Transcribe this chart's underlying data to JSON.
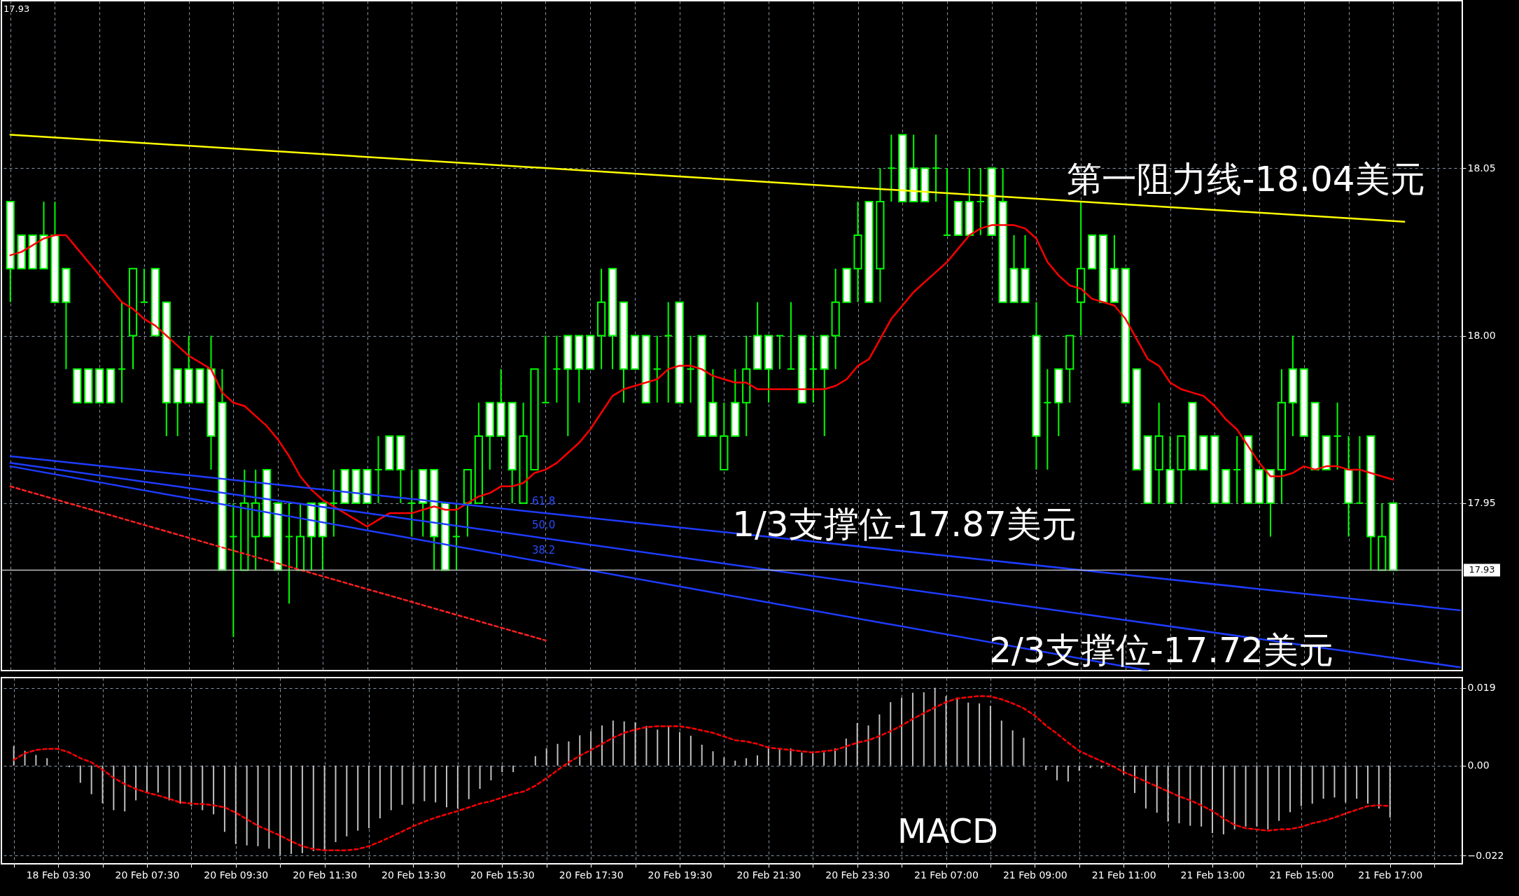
{
  "chart_data": [
    {
      "type": "candlestick",
      "categories": [
        null,
        null,
        null,
        null,
        null,
        null,
        null,
        null,
        null,
        null,
        null,
        null,
        null,
        null,
        null,
        null,
        null,
        null,
        null,
        null,
        null,
        null,
        null,
        null,
        null,
        null,
        null,
        null,
        null,
        null,
        null,
        null,
        null,
        null,
        null,
        null,
        null,
        null,
        null,
        null,
        null,
        null,
        null,
        null,
        null,
        null,
        null,
        null,
        null,
        null,
        null,
        null,
        null,
        null,
        null,
        null,
        null,
        null,
        null,
        null,
        null,
        null,
        null,
        null,
        null,
        null,
        null,
        null,
        null,
        null,
        null,
        null,
        null,
        null,
        null,
        null,
        null,
        null,
        null,
        null,
        null,
        null,
        null,
        null,
        null,
        null,
        null,
        null,
        null,
        null,
        null,
        null,
        null,
        null,
        null,
        null,
        null,
        null,
        null,
        null,
        null,
        null,
        null,
        null,
        null,
        null,
        null,
        null,
        null,
        null,
        null,
        null,
        null,
        null,
        null,
        null,
        null,
        null,
        null,
        null,
        null,
        null,
        null,
        null,
        null,
        null,
        null,
        null,
        null,
        null,
        null
      ],
      "ohlc": [
        [
          18.04,
          18.04,
          18.01,
          18.02
        ],
        [
          18.03,
          18.03,
          18.02,
          18.02
        ],
        [
          18.03,
          18.03,
          18.02,
          18.02
        ],
        [
          18.03,
          18.04,
          18.02,
          18.02
        ],
        [
          18.03,
          18.04,
          18.01,
          18.01
        ],
        [
          18.02,
          18.02,
          17.99,
          18.01
        ],
        [
          17.99,
          17.99,
          17.98,
          17.98
        ],
        [
          17.99,
          17.99,
          17.98,
          17.98
        ],
        [
          17.99,
          17.99,
          17.98,
          17.98
        ],
        [
          17.99,
          17.99,
          17.98,
          17.98
        ],
        [
          17.99,
          18.01,
          17.98,
          17.99
        ],
        [
          18.0,
          18.02,
          17.99,
          18.02
        ],
        [
          18.01,
          18.02,
          18.01,
          18.01
        ],
        [
          18.02,
          18.02,
          18.0,
          18.0
        ],
        [
          18.01,
          18.01,
          17.97,
          17.98
        ],
        [
          17.99,
          17.99,
          17.97,
          17.98
        ],
        [
          17.99,
          18.0,
          17.98,
          17.98
        ],
        [
          17.99,
          17.99,
          17.98,
          17.98
        ],
        [
          17.99,
          18.0,
          17.96,
          17.97
        ],
        [
          17.98,
          17.99,
          17.93,
          17.93
        ],
        [
          17.94,
          17.95,
          17.91,
          17.94
        ],
        [
          17.93,
          17.96,
          17.93,
          17.95
        ],
        [
          17.94,
          17.96,
          17.93,
          17.95
        ],
        [
          17.96,
          17.96,
          17.94,
          17.94
        ],
        [
          17.95,
          17.95,
          17.93,
          17.93
        ],
        [
          17.94,
          17.95,
          17.92,
          17.94
        ],
        [
          17.93,
          17.95,
          17.93,
          17.94
        ],
        [
          17.95,
          17.95,
          17.93,
          17.94
        ],
        [
          17.95,
          17.95,
          17.93,
          17.94
        ],
        [
          17.95,
          17.96,
          17.94,
          17.95
        ],
        [
          17.96,
          17.96,
          17.95,
          17.95
        ],
        [
          17.96,
          17.96,
          17.95,
          17.95
        ],
        [
          17.96,
          17.96,
          17.95,
          17.95
        ],
        [
          17.96,
          17.97,
          17.95,
          17.96
        ],
        [
          17.97,
          17.97,
          17.96,
          17.96
        ],
        [
          17.97,
          17.97,
          17.95,
          17.96
        ],
        [
          17.95,
          17.96,
          17.94,
          17.95
        ],
        [
          17.96,
          17.96,
          17.94,
          17.95
        ],
        [
          17.96,
          17.96,
          17.93,
          17.94
        ],
        [
          17.95,
          17.95,
          17.93,
          17.93
        ],
        [
          17.94,
          17.95,
          17.93,
          17.94
        ],
        [
          17.95,
          17.96,
          17.94,
          17.96
        ],
        [
          17.95,
          17.98,
          17.95,
          17.97
        ],
        [
          17.98,
          17.98,
          17.96,
          17.97
        ],
        [
          17.98,
          17.99,
          17.97,
          17.97
        ],
        [
          17.98,
          17.98,
          17.95,
          17.96
        ],
        [
          17.95,
          17.98,
          17.95,
          17.97
        ],
        [
          17.96,
          17.99,
          17.96,
          17.99
        ],
        [
          17.98,
          18.0,
          17.98,
          17.98
        ],
        [
          17.99,
          18.0,
          17.98,
          17.99
        ],
        [
          18.0,
          18.0,
          17.97,
          17.99
        ],
        [
          18.0,
          18.0,
          17.98,
          17.99
        ],
        [
          18.0,
          18.0,
          17.99,
          17.99
        ],
        [
          18.0,
          18.02,
          17.99,
          18.01
        ],
        [
          18.02,
          18.02,
          17.99,
          18.0
        ],
        [
          18.01,
          18.01,
          17.98,
          17.99
        ],
        [
          18.0,
          18.0,
          17.99,
          17.99
        ],
        [
          18.0,
          18.0,
          17.98,
          17.98
        ],
        [
          17.99,
          18.0,
          17.98,
          17.99
        ],
        [
          18.0,
          18.01,
          17.98,
          18.0
        ],
        [
          18.01,
          18.01,
          17.98,
          17.98
        ],
        [
          17.99,
          18.0,
          17.98,
          17.99
        ],
        [
          18.0,
          18.0,
          17.97,
          17.97
        ],
        [
          17.98,
          17.99,
          17.97,
          17.97
        ],
        [
          17.96,
          17.98,
          17.96,
          17.97
        ],
        [
          17.98,
          17.99,
          17.97,
          17.97
        ],
        [
          17.98,
          18.0,
          17.97,
          17.99
        ],
        [
          18.0,
          18.01,
          17.99,
          17.99
        ],
        [
          18.0,
          18.0,
          17.98,
          17.99
        ],
        [
          18.0,
          18.0,
          17.99,
          18.0
        ],
        [
          17.99,
          18.01,
          17.99,
          17.99
        ],
        [
          18.0,
          18.0,
          17.98,
          17.98
        ],
        [
          17.99,
          18.0,
          17.98,
          17.99
        ],
        [
          18.0,
          18.0,
          17.97,
          17.99
        ],
        [
          18.0,
          18.02,
          17.99,
          18.01
        ],
        [
          18.02,
          18.02,
          18.01,
          18.01
        ],
        [
          18.02,
          18.04,
          18.01,
          18.03
        ],
        [
          18.04,
          18.04,
          18.01,
          18.01
        ],
        [
          18.02,
          18.05,
          18.01,
          18.04
        ],
        [
          18.05,
          18.06,
          18.04,
          18.05
        ],
        [
          18.06,
          18.06,
          18.04,
          18.04
        ],
        [
          18.05,
          18.06,
          18.04,
          18.04
        ],
        [
          18.05,
          18.05,
          18.04,
          18.04
        ],
        [
          18.05,
          18.06,
          18.04,
          18.05
        ],
        [
          18.03,
          18.05,
          18.03,
          18.03
        ],
        [
          18.04,
          18.04,
          18.03,
          18.03
        ],
        [
          18.04,
          18.05,
          18.03,
          18.03
        ],
        [
          18.04,
          18.05,
          18.03,
          18.04
        ],
        [
          18.05,
          18.05,
          18.03,
          18.03
        ],
        [
          18.04,
          18.05,
          18.01,
          18.01
        ],
        [
          18.02,
          18.03,
          18.01,
          18.01
        ],
        [
          18.02,
          18.03,
          18.01,
          18.01
        ],
        [
          18.0,
          18.01,
          17.96,
          17.97
        ],
        [
          17.98,
          17.99,
          17.96,
          17.98
        ],
        [
          17.99,
          17.99,
          17.97,
          17.98
        ],
        [
          17.99,
          18.0,
          17.98,
          18.0
        ],
        [
          18.01,
          18.04,
          18.0,
          18.02
        ],
        [
          18.03,
          18.03,
          18.02,
          18.02
        ],
        [
          18.03,
          18.03,
          18.01,
          18.01
        ],
        [
          18.02,
          18.03,
          18.01,
          18.01
        ],
        [
          18.02,
          18.02,
          17.98,
          17.98
        ],
        [
          17.99,
          17.99,
          17.96,
          17.96
        ],
        [
          17.97,
          17.97,
          17.95,
          17.95
        ],
        [
          17.96,
          17.98,
          17.95,
          17.97
        ],
        [
          17.96,
          17.97,
          17.95,
          17.95
        ],
        [
          17.96,
          17.97,
          17.95,
          17.97
        ],
        [
          17.98,
          17.98,
          17.96,
          17.96
        ],
        [
          17.97,
          17.97,
          17.96,
          17.96
        ],
        [
          17.97,
          17.97,
          17.95,
          17.95
        ],
        [
          17.96,
          17.96,
          17.95,
          17.95
        ],
        [
          17.96,
          17.97,
          17.95,
          17.96
        ],
        [
          17.97,
          17.97,
          17.95,
          17.95
        ],
        [
          17.96,
          17.96,
          17.95,
          17.95
        ],
        [
          17.96,
          17.96,
          17.94,
          17.95
        ],
        [
          17.96,
          17.99,
          17.95,
          17.98
        ],
        [
          17.99,
          18.0,
          17.97,
          17.98
        ],
        [
          17.99,
          17.99,
          17.97,
          17.97
        ],
        [
          17.98,
          17.98,
          17.96,
          17.96
        ],
        [
          17.97,
          17.97,
          17.96,
          17.96
        ],
        [
          17.97,
          17.98,
          17.96,
          17.97
        ],
        [
          17.96,
          17.97,
          17.94,
          17.95
        ],
        [
          17.95,
          17.97,
          17.95,
          17.95
        ],
        [
          17.97,
          17.97,
          17.93,
          17.94
        ],
        [
          17.93,
          17.95,
          17.93,
          17.94
        ],
        [
          17.95,
          17.95,
          17.93,
          17.93
        ],
        null,
        null,
        null,
        null,
        null,
        null
      ],
      "color": "#00ff00",
      "series": [
        {
          "type": "line",
          "color": "#ff0000",
          "values": [
            18.024,
            18.025,
            18.027,
            18.029,
            18.03,
            18.03,
            18.026,
            18.022,
            18.018,
            18.014,
            18.01,
            18.008,
            18.005,
            18.003,
            18.0,
            17.997,
            17.994,
            17.992,
            17.99,
            17.983,
            17.98,
            17.979,
            17.976,
            17.973,
            17.969,
            17.964,
            17.958,
            17.954,
            17.951,
            17.949,
            17.947,
            17.945,
            17.943,
            17.945,
            17.947,
            17.947,
            17.947,
            17.948,
            17.949,
            17.948,
            17.948,
            17.95,
            17.952,
            17.953,
            17.955,
            17.955,
            17.956,
            17.959,
            17.96,
            17.962,
            17.965,
            17.968,
            17.972,
            17.977,
            17.982,
            17.984,
            17.985,
            17.986,
            17.987,
            17.99,
            17.991,
            17.991,
            17.99,
            17.988,
            17.987,
            17.986,
            17.986,
            17.984,
            17.984,
            17.984,
            17.984,
            17.984,
            17.984,
            17.984,
            17.985,
            17.987,
            17.991,
            17.993,
            17.999,
            18.005,
            18.009,
            18.013,
            18.016,
            18.019,
            18.022,
            18.026,
            18.03,
            18.032,
            18.033,
            18.033,
            18.033,
            18.032,
            18.029,
            18.022,
            18.018,
            18.015,
            18.014,
            18.011,
            18.01,
            18.009,
            18.005,
            17.999,
            17.993,
            17.991,
            17.986,
            17.984,
            17.983,
            17.982,
            17.979,
            17.975,
            17.972,
            17.967,
            17.962,
            17.958,
            17.958,
            17.959,
            17.961,
            17.96,
            17.961,
            17.961,
            17.96,
            17.96,
            17.959,
            17.958,
            17.957,
            null,
            null,
            null,
            null,
            null,
            null
          ]
        },
        {
          "type": "line",
          "color": "#ffff00",
          "values": [
            18.06,
            null,
            null,
            null,
            null,
            null,
            null,
            null,
            null,
            null,
            null,
            null,
            null,
            null,
            null,
            null,
            null,
            null,
            null,
            null,
            null,
            null,
            null,
            null,
            null,
            null,
            null,
            null,
            null,
            null,
            null,
            null,
            null,
            null,
            null,
            null,
            null,
            null,
            null,
            null,
            null,
            null,
            null,
            null,
            null,
            null,
            null,
            null,
            null,
            null,
            null,
            null,
            null,
            null,
            null,
            null,
            null,
            null,
            null,
            null,
            null,
            null,
            null,
            null,
            null,
            null,
            null,
            null,
            null,
            null,
            null,
            null,
            null,
            null,
            null,
            null,
            null,
            null,
            null,
            null,
            null,
            null,
            null,
            null,
            null,
            null,
            null,
            null,
            null,
            null,
            null,
            null,
            null,
            null,
            null,
            null,
            null,
            null,
            null,
            null,
            null,
            null,
            null,
            null,
            null,
            null,
            null,
            null,
            null,
            null,
            null,
            null,
            null,
            null,
            null,
            null,
            null,
            null,
            null,
            null,
            null,
            null,
            null,
            null,
            null,
            18.034,
            null,
            null,
            null,
            null,
            null
          ]
        },
        {
          "type": "line",
          "color": "#1e3cff",
          "values": [
            17.964,
            null,
            null,
            null,
            null,
            null,
            null,
            null,
            null,
            null,
            null,
            null,
            null,
            null,
            null,
            null,
            null,
            null,
            null,
            null,
            null,
            null,
            null,
            null,
            null,
            null,
            null,
            null,
            null,
            null,
            null,
            null,
            null,
            null,
            null,
            null,
            null,
            null,
            null,
            null,
            null,
            null,
            null,
            null,
            null,
            null,
            null,
            null,
            null,
            null,
            null,
            null,
            null,
            null,
            null,
            null,
            null,
            null,
            null,
            null,
            null,
            null,
            null,
            null,
            null,
            null,
            null,
            null,
            null,
            null,
            null,
            null,
            null,
            null,
            null,
            null,
            null,
            null,
            null,
            null,
            null,
            null,
            null,
            null,
            null,
            null,
            null,
            null,
            null,
            null,
            null,
            null,
            null,
            null,
            null,
            null,
            null,
            null,
            null,
            null,
            null,
            null,
            null,
            null,
            null,
            null,
            null,
            null,
            null,
            null,
            null,
            null,
            null,
            null,
            null,
            null,
            null,
            null,
            null,
            null,
            null,
            null,
            null,
            null,
            null,
            null,
            null,
            null,
            null,
            null,
            17.918
          ]
        },
        {
          "type": "line",
          "color": "#1e3cff",
          "values": [
            17.962,
            null,
            null,
            null,
            null,
            null,
            null,
            null,
            null,
            null,
            null,
            null,
            null,
            null,
            null,
            null,
            null,
            null,
            null,
            null,
            null,
            null,
            null,
            null,
            null,
            null,
            null,
            null,
            null,
            null,
            null,
            null,
            null,
            null,
            null,
            null,
            null,
            null,
            null,
            null,
            null,
            null,
            null,
            null,
            null,
            null,
            null,
            null,
            null,
            null,
            null,
            null,
            null,
            null,
            null,
            null,
            null,
            null,
            null,
            null,
            null,
            null,
            null,
            null,
            null,
            null,
            null,
            null,
            null,
            null,
            null,
            null,
            null,
            null,
            null,
            null,
            null,
            null,
            null,
            null,
            null,
            null,
            null,
            null,
            null,
            null,
            null,
            null,
            null,
            null,
            null,
            null,
            null,
            null,
            null,
            null,
            null,
            null,
            null,
            null,
            null,
            null,
            null,
            null,
            null,
            null,
            null,
            null,
            null,
            null,
            null,
            null,
            null,
            null,
            null,
            null,
            null,
            null,
            null,
            null,
            null,
            null,
            null,
            null,
            null,
            null,
            null,
            null,
            null,
            null,
            17.901
          ]
        },
        {
          "type": "line",
          "color": "#1e3cff",
          "values": [
            17.961,
            null,
            null,
            null,
            null,
            null,
            null,
            null,
            null,
            null,
            null,
            null,
            null,
            null,
            null,
            null,
            null,
            null,
            null,
            null,
            null,
            null,
            null,
            null,
            null,
            null,
            null,
            null,
            null,
            null,
            null,
            null,
            null,
            null,
            null,
            null,
            null,
            null,
            null,
            null,
            null,
            null,
            null,
            null,
            null,
            null,
            null,
            null,
            null,
            null,
            null,
            null,
            null,
            null,
            null,
            null,
            null,
            null,
            null,
            null,
            null,
            null,
            null,
            null,
            null,
            null,
            null,
            null,
            null,
            null,
            null,
            null,
            null,
            null,
            null,
            null,
            null,
            null,
            null,
            null,
            null,
            null,
            null,
            null,
            null,
            null,
            null,
            null,
            null,
            null,
            null,
            null,
            null,
            null,
            null,
            null,
            null,
            null,
            null,
            null,
            null,
            null,
            17.9,
            null,
            null,
            null,
            null,
            null,
            null,
            null,
            null,
            null,
            null,
            null,
            null,
            null,
            null,
            null,
            null,
            null,
            null,
            null,
            null,
            null,
            null,
            null,
            null,
            null,
            null,
            null,
            null
          ]
        },
        {
          "type": "line",
          "color": "#ff2020",
          "line_style": "dashed",
          "values": [
            17.955,
            null,
            null,
            null,
            null,
            null,
            null,
            null,
            null,
            null,
            null,
            null,
            null,
            null,
            null,
            null,
            null,
            null,
            null,
            null,
            null,
            null,
            null,
            null,
            null,
            null,
            null,
            null,
            null,
            null,
            null,
            null,
            null,
            null,
            null,
            null,
            null,
            null,
            null,
            null,
            null,
            null,
            null,
            null,
            null,
            null,
            null,
            null,
            17.909,
            null,
            null,
            null,
            null,
            null,
            null,
            null,
            null,
            null,
            null,
            null,
            null,
            null,
            null,
            null,
            null,
            null,
            null,
            null,
            null,
            null,
            null,
            null,
            null,
            null,
            null,
            null,
            null,
            null,
            null,
            null,
            null,
            null,
            null,
            null,
            null,
            null,
            null,
            null,
            null,
            null,
            null,
            null,
            null,
            null,
            null,
            null,
            null,
            null,
            null,
            null,
            null,
            null,
            null,
            null,
            null,
            null,
            null,
            null,
            null,
            null,
            null,
            null,
            null,
            null,
            null,
            null,
            null,
            null,
            null,
            null,
            null,
            null,
            null,
            null,
            null,
            null,
            null,
            null,
            null,
            null,
            null
          ]
        }
      ],
      "ylim": [
        17.9,
        18.1
      ],
      "yticks": [
        17.95,
        {
          "value": 18,
          "label": "18.00"
        },
        18.05
      ],
      "grid": true,
      "tick_labels": "y",
      "ref_lines": [
        {
          "axis": "y",
          "value": 17.93,
          "label": "17.93",
          "color": "#c0c0c0"
        }
      ],
      "annotations": [
        "17.93",
        "第一阻力线-18.04美元",
        "1/3支撑位-17.87美元",
        "2/3支撑位-17.72美元",
        "61.8",
        "50.0",
        "38.2"
      ]
    },
    {
      "type": "bar",
      "categories": [
        null,
        null,
        null,
        null,
        "18 Feb 03:30",
        null,
        null,
        null,
        null,
        null,
        null,
        null,
        "20 Feb 07:30",
        null,
        null,
        null,
        null,
        null,
        null,
        null,
        "20 Feb 09:30",
        null,
        null,
        null,
        null,
        null,
        null,
        null,
        "20 Feb 11:30",
        null,
        null,
        null,
        null,
        null,
        null,
        null,
        "20 Feb 13:30",
        null,
        null,
        null,
        null,
        null,
        null,
        null,
        "20 Feb 15:30",
        null,
        null,
        null,
        null,
        null,
        null,
        null,
        "20 Feb 17:30",
        null,
        null,
        null,
        null,
        null,
        null,
        null,
        "20 Feb 19:30",
        null,
        null,
        null,
        null,
        null,
        null,
        null,
        "20 Feb 21:30",
        null,
        null,
        null,
        null,
        null,
        null,
        null,
        "20 Feb 23:30",
        null,
        null,
        null,
        null,
        null,
        null,
        null,
        "21 Feb 07:00",
        null,
        null,
        null,
        null,
        null,
        null,
        null,
        "21 Feb 09:00",
        null,
        null,
        null,
        null,
        null,
        null,
        null,
        "21 Feb 11:00",
        null,
        null,
        null,
        null,
        null,
        null,
        null,
        "21 Feb 13:00",
        null,
        null,
        null,
        null,
        null,
        null,
        null,
        "21 Feb 15:00",
        null,
        null,
        null,
        null,
        null,
        null,
        null,
        "21 Feb 17:00",
        null,
        null,
        null,
        null,
        null,
        null
      ],
      "series": [
        {
          "type": "bar",
          "color": "#c0c0c0",
          "values": [
            0.0048,
            0.0036,
            0.0026,
            0.0018,
            0,
            -0.0004,
            -0.0042,
            -0.007,
            -0.0092,
            -0.0109,
            -0.0112,
            -0.0085,
            -0.0067,
            -0.0066,
            -0.0085,
            -0.0093,
            -0.0099,
            -0.0109,
            -0.0119,
            -0.0162,
            -0.0192,
            -0.0195,
            -0.0197,
            -0.0203,
            -0.0219,
            -0.0216,
            -0.0214,
            -0.0209,
            -0.0207,
            -0.0187,
            -0.0173,
            -0.0159,
            -0.0153,
            -0.0129,
            -0.0109,
            -0.0096,
            -0.0093,
            -0.0087,
            -0.009,
            -0.0102,
            -0.0105,
            -0.0082,
            -0.0057,
            -0.0036,
            -0.0016,
            -0.0016,
            0,
            0.0023,
            0.0042,
            0.0053,
            0.0059,
            0.0074,
            0.0084,
            0.0098,
            0.011,
            0.0108,
            0.0106,
            0.0097,
            0.0088,
            0.0096,
            0.0082,
            0.0073,
            0.0051,
            0.0035,
            0.002,
            0.0012,
            0.0018,
            0.0025,
            0.0042,
            0.0042,
            0.0042,
            0.0032,
            0.0032,
            0.0032,
            0.0042,
            0.0066,
            0.0104,
            0.0098,
            0.0125,
            0.0155,
            0.0166,
            0.0178,
            0.0179,
            0.019,
            0.017,
            0.0166,
            0.0154,
            0.0152,
            0.0146,
            0.011,
            0.0086,
            0.0068,
            0,
            -0.0011,
            -0.0036,
            -0.0039,
            -0.0013,
            -0.0006,
            -0.0007,
            -0.0004,
            -0.0022,
            -0.0067,
            -0.0105,
            -0.0115,
            -0.0137,
            -0.0141,
            -0.0147,
            -0.0149,
            -0.0165,
            -0.0168,
            -0.0156,
            -0.0149,
            -0.0149,
            -0.0156,
            -0.0135,
            -0.0114,
            -0.0099,
            -0.0093,
            -0.0081,
            -0.0078,
            -0.009,
            -0.0081,
            -0.0093,
            -0.0105,
            -0.0127,
            null,
            null,
            null,
            null,
            null,
            null
          ]
        },
        {
          "type": "line",
          "color": "#ff0000",
          "line_style": "dashed",
          "values": [
            0.0014,
            0.003,
            0.0038,
            0.0041,
            0.0041,
            0.0032,
            0.0018,
            0.0008,
            -0.001,
            -0.003,
            -0.0045,
            -0.0057,
            -0.0066,
            -0.0073,
            -0.0081,
            -0.009,
            -0.0093,
            -0.0094,
            -0.0097,
            -0.0102,
            -0.0115,
            -0.0131,
            -0.0147,
            -0.0159,
            -0.0171,
            -0.0185,
            -0.0197,
            -0.0204,
            -0.0207,
            -0.0207,
            -0.0207,
            -0.0204,
            -0.0197,
            -0.0186,
            -0.0174,
            -0.0161,
            -0.0148,
            -0.0137,
            -0.0127,
            -0.0119,
            -0.0111,
            -0.0102,
            -0.0093,
            -0.0087,
            -0.0078,
            -0.0069,
            -0.0063,
            -0.0049,
            -0.0031,
            -0.0011,
            0.0008,
            0.0024,
            0.0038,
            0.0053,
            0.0068,
            0.008,
            0.0088,
            0.0094,
            0.0096,
            0.0096,
            0.0096,
            0.0092,
            0.0086,
            0.008,
            0.0071,
            0.0062,
            0.0059,
            0.0053,
            0.0044,
            0.0041,
            0.0038,
            0.0035,
            0.0032,
            0.0035,
            0.0038,
            0.0047,
            0.0056,
            0.0062,
            0.0072,
            0.0084,
            0.0098,
            0.0114,
            0.0128,
            0.0142,
            0.0155,
            0.0164,
            0.0167,
            0.017,
            0.0169,
            0.0162,
            0.0152,
            0.014,
            0.0122,
            0.0098,
            0.0078,
            0.0056,
            0.0036,
            0.0023,
            0.0011,
            -0.0001,
            -0.0016,
            -0.0027,
            -0.0039,
            -0.0051,
            -0.0063,
            -0.0075,
            -0.0085,
            -0.0097,
            -0.0111,
            -0.0129,
            -0.0145,
            -0.0153,
            -0.0156,
            -0.0159,
            -0.0156,
            -0.0155,
            -0.015,
            -0.0141,
            -0.0135,
            -0.0127,
            -0.0117,
            -0.0108,
            -0.0099,
            -0.0097,
            -0.0099,
            null,
            null,
            null,
            null,
            null,
            null
          ]
        }
      ],
      "ylim": [
        -0.024,
        0.0215
      ],
      "yticks": [
        0.019,
        {
          "value": 0,
          "label": "0.00"
        },
        -0.022
      ],
      "grid": true,
      "annotations": [
        "MACD"
      ]
    }
  ]
}
